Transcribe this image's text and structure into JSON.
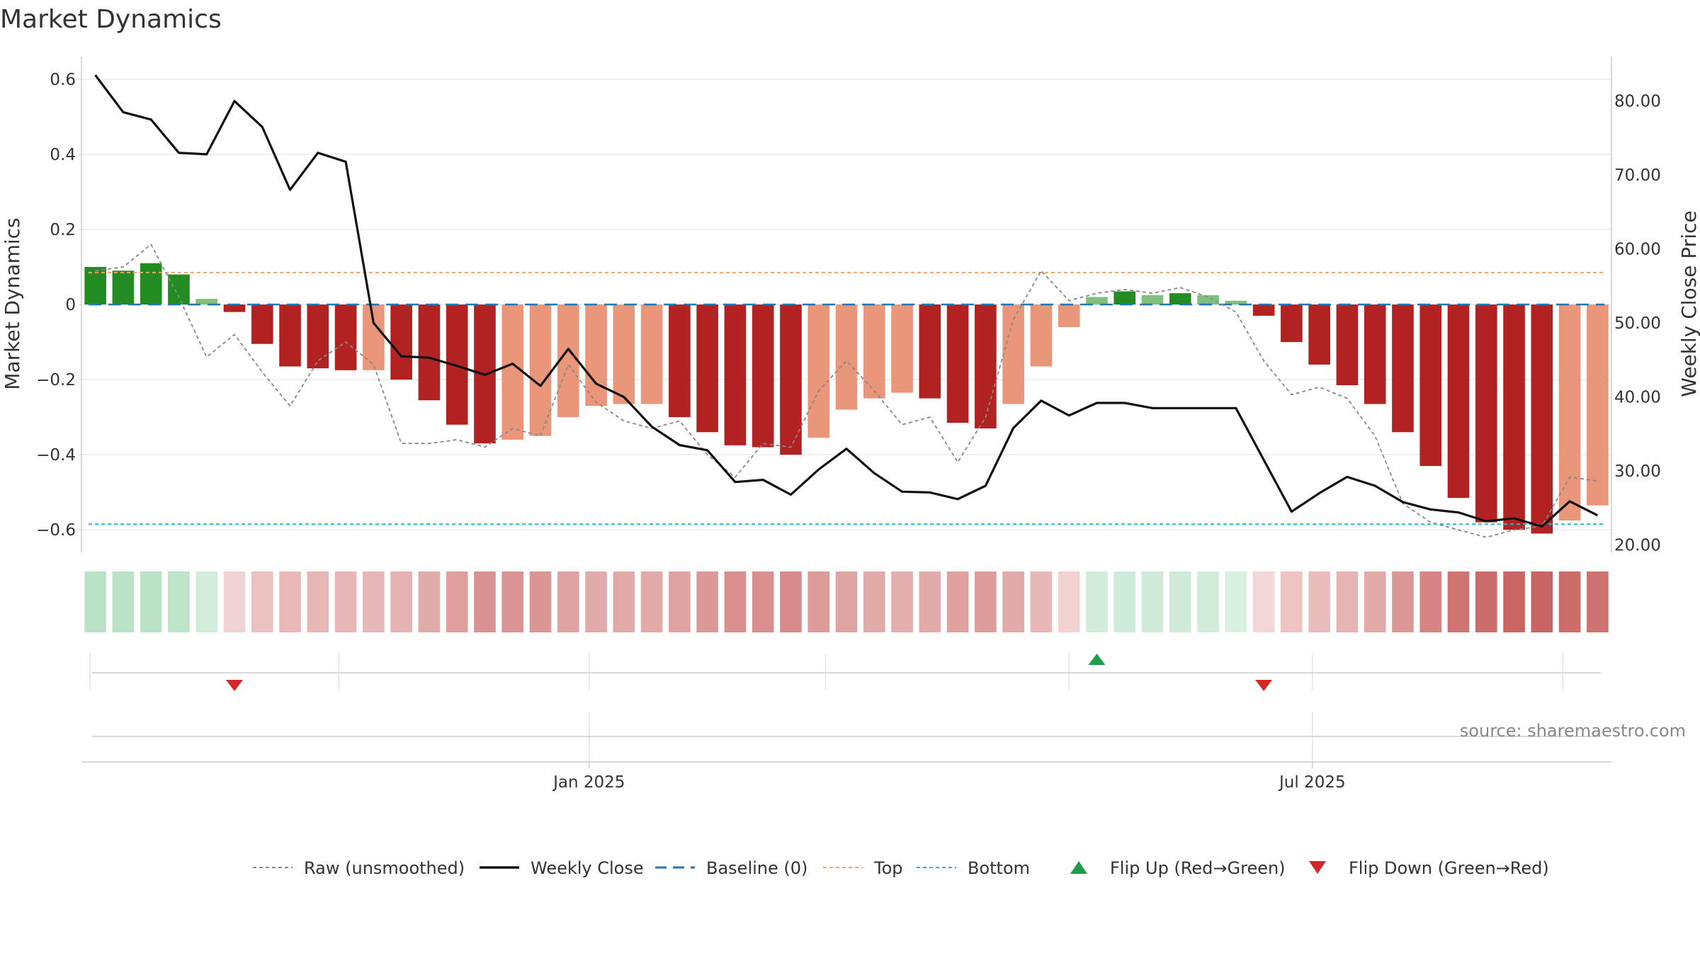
{
  "chart_data": {
    "type": "bar",
    "title": "Market Dynamics",
    "y_left_label": "Market Dynamics",
    "y_right_label": "Weekly Close Price",
    "y_left_range": [
      -0.66,
      0.66
    ],
    "y_right_range": [
      19,
      86
    ],
    "y_left_ticks": [
      {
        "value": 0.6,
        "label": "0.6"
      },
      {
        "value": 0.4,
        "label": "0.4"
      },
      {
        "value": 0.2,
        "label": "0.2"
      },
      {
        "value": 0,
        "label": "0"
      },
      {
        "value": -0.2,
        "label": "−0.2"
      },
      {
        "value": -0.4,
        "label": "−0.4"
      },
      {
        "value": -0.6,
        "label": "−0.6"
      }
    ],
    "y_right_ticks": [
      {
        "value": 80,
        "label": "80.00"
      },
      {
        "value": 70,
        "label": "70.00"
      },
      {
        "value": 60,
        "label": "60.00"
      },
      {
        "value": 50,
        "label": "50.00"
      },
      {
        "value": 40,
        "label": "40.00"
      },
      {
        "value": 30,
        "label": "30.00"
      },
      {
        "value": 20,
        "label": "20.00"
      }
    ],
    "x_ticks": [
      {
        "index": 17.75,
        "label": "Jan 2025"
      },
      {
        "index": 43.75,
        "label": "Jul 2025"
      }
    ],
    "x_minor_ticks": [
      0,
      8.75,
      17.75,
      26.25,
      35,
      43.75,
      52.75
    ],
    "top_threshold": 0.085,
    "bottom_threshold": -0.585,
    "baseline": 0,
    "bars": [
      0.1,
      0.09,
      0.11,
      0.08,
      0.015,
      -0.02,
      -0.105,
      -0.165,
      -0.17,
      -0.175,
      -0.175,
      -0.2,
      -0.255,
      -0.32,
      -0.37,
      -0.36,
      -0.35,
      -0.3,
      -0.27,
      -0.265,
      -0.265,
      -0.3,
      -0.34,
      -0.375,
      -0.38,
      -0.4,
      -0.355,
      -0.28,
      -0.25,
      -0.235,
      -0.25,
      -0.315,
      -0.33,
      -0.265,
      -0.165,
      -0.06,
      0.02,
      0.035,
      0.025,
      0.03,
      0.025,
      0.01,
      -0.03,
      -0.1,
      -0.16,
      -0.215,
      -0.265,
      -0.34,
      -0.43,
      -0.515,
      -0.58,
      -0.6,
      -0.61,
      -0.575,
      -0.535
    ],
    "raw": [
      0.09,
      0.1,
      0.16,
      0.02,
      -0.14,
      -0.08,
      -0.18,
      -0.27,
      -0.15,
      -0.1,
      -0.16,
      -0.37,
      -0.37,
      -0.36,
      -0.38,
      -0.33,
      -0.35,
      -0.16,
      -0.26,
      -0.31,
      -0.33,
      -0.31,
      -0.4,
      -0.46,
      -0.37,
      -0.38,
      -0.23,
      -0.15,
      -0.23,
      -0.32,
      -0.3,
      -0.42,
      -0.3,
      -0.04,
      0.09,
      0.01,
      0.03,
      0.04,
      0.03,
      0.045,
      0.02,
      -0.02,
      -0.15,
      -0.24,
      -0.22,
      -0.25,
      -0.35,
      -0.53,
      -0.58,
      -0.6,
      -0.62,
      -0.6,
      -0.59,
      -0.46,
      -0.47
    ],
    "weekly_close": [
      83.5,
      78.5,
      77.5,
      73,
      72.8,
      80,
      76.5,
      68,
      73,
      71.8,
      50,
      45.5,
      45.3,
      44.2,
      43,
      44.5,
      41.5,
      46.5,
      41.8,
      40,
      36,
      33.5,
      32.8,
      28.5,
      28.8,
      26.8,
      30.2,
      33,
      29.7,
      27.2,
      27.1,
      26.2,
      28,
      35.8,
      39.5,
      37.5,
      39.2,
      39.2,
      38.5,
      38.5,
      38.5,
      38.5,
      31.5,
      24.5,
      27,
      29.2,
      28,
      25.8,
      24.8,
      24.4,
      23.2,
      23.6,
      22.5,
      25.9,
      24
    ],
    "heat_colors": [
      "#b9e2c6",
      "#b9e2c6",
      "#b9e2c6",
      "#bde3c9",
      "#d3eddb",
      "#f2d3d3",
      "#ecc2c1",
      "#e9b8b7",
      "#e7b7b6",
      "#e6b7b6",
      "#e6b7b6",
      "#e4b3b2",
      "#e1abaa",
      "#de9f9e",
      "#d99291",
      "#d99493",
      "#da9695",
      "#dea3a2",
      "#e1a9a8",
      "#e1aaa9",
      "#e1aaa9",
      "#dea3a2",
      "#dc9897",
      "#d98f8e",
      "#d98f8e",
      "#d78c8b",
      "#dc9a99",
      "#dea5a4",
      "#e1abaa",
      "#e2aeae",
      "#e1abaa",
      "#dea1a0",
      "#dc9c9b",
      "#e1aaa9",
      "#e6b8b7",
      "#f2d1d1",
      "#d2ecda",
      "#cdeada",
      "#cfebd7",
      "#cfebd7",
      "#d1ecd9",
      "#d8f0df",
      "#f3d6d6",
      "#eec4c3",
      "#eabcbb",
      "#e6b4b3",
      "#e1a9a8",
      "#db9897",
      "#d48584",
      "#ce7574",
      "#ca6c6b",
      "#c86664",
      "#c86463",
      "#cb6b6a",
      "#cd7271"
    ],
    "flips": [
      {
        "index": 5,
        "direction": "down"
      },
      {
        "index": 36,
        "direction": "up"
      },
      {
        "index": 42,
        "direction": "down"
      }
    ],
    "legend_position": "bottom-center",
    "grid": true,
    "colors": {
      "pos_strong": "#228b22",
      "pos_weak": "#7fbf7f",
      "neg_strong": "#b22222",
      "neg_weak": "#e9967a",
      "raw": "#888888",
      "close": "#111111",
      "baseline": "#1f77b4",
      "top": "#f4a460",
      "bottom": "#17becf",
      "flip_up": "#1e9e4a",
      "flip_down": "#d62728"
    }
  },
  "legend": [
    {
      "key": "raw",
      "label": "Raw (unsmoothed)"
    },
    {
      "key": "close",
      "label": "Weekly Close"
    },
    {
      "key": "baseline",
      "label": "Baseline (0)"
    },
    {
      "key": "top",
      "label": "Top"
    },
    {
      "key": "bottom",
      "label": "Bottom"
    },
    {
      "key": "flip_up",
      "label": "Flip Up (Red→Green)"
    },
    {
      "key": "flip_down",
      "label": "Flip Down (Green→Red)"
    }
  ],
  "source": "source: sharemaestro.com"
}
